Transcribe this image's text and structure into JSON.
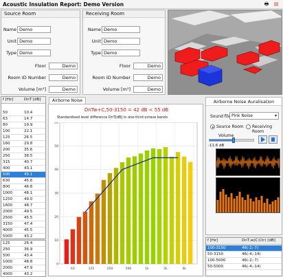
{
  "window": {
    "title": "Acoustic Insulation Report: Demo Version"
  },
  "source_room": {
    "title": "Source Room",
    "fields": [
      {
        "label": "Name",
        "value": "Demo"
      },
      {
        "label": "Unit",
        "value": "Demo"
      },
      {
        "label": "Type",
        "value": "Demo"
      },
      {
        "label": "Floor",
        "value": "Demo"
      },
      {
        "label": "Room ID Number",
        "value": "Demo"
      },
      {
        "label": "Volume [m³]",
        "value": "Demo"
      }
    ]
  },
  "receiving_room": {
    "title": "Receiving Room",
    "fields": [
      {
        "label": "Name",
        "value": "Demo"
      },
      {
        "label": "Unit",
        "value": "Demo"
      },
      {
        "label": "Type",
        "value": "Demo"
      },
      {
        "label": "Floor",
        "value": "Demo"
      },
      {
        "label": "Room ID Number",
        "value": "Demo"
      },
      {
        "label": "Volume [m³]",
        "value": "Demo"
      }
    ]
  },
  "freq_table": {
    "headers": [
      "f [Hz]",
      "DnT [dB]"
    ],
    "rows": [
      [
        "50",
        "10.4"
      ],
      [
        "63",
        "14.7"
      ],
      [
        "80",
        "19.9"
      ],
      [
        "100",
        "22.1"
      ],
      [
        "125",
        "26.5"
      ],
      [
        "160",
        "29.8"
      ],
      [
        "200",
        "35.6"
      ],
      [
        "250",
        "38.5"
      ],
      [
        "315",
        "40.7"
      ],
      [
        "400",
        "43.1"
      ],
      [
        "500",
        "45.1"
      ],
      [
        "630",
        "45.6"
      ],
      [
        "800",
        "46.8"
      ],
      [
        "1000",
        "48.1"
      ],
      [
        "1250",
        "49.0"
      ],
      [
        "1600",
        "48.7"
      ],
      [
        "2000",
        "49.5"
      ],
      [
        "2500",
        "45.5"
      ],
      [
        "3150",
        "47.4"
      ],
      [
        "4000",
        "45.5"
      ],
      [
        "5000",
        "43.2"
      ]
    ],
    "selected_index": 10
  },
  "octave_table": {
    "rows": [
      [
        "125",
        "26.4"
      ],
      [
        "250",
        "36.9"
      ],
      [
        "500",
        "43.4"
      ],
      [
        "1000",
        "48.8"
      ],
      [
        "2000",
        "47.9"
      ],
      [
        "4000",
        "43.2"
      ]
    ]
  },
  "chart_tab": {
    "label": "Airborne Noise"
  },
  "result_line": "DnTw+C,50-3150 = 42 dB < 55 dB",
  "chart_data": {
    "type": "bar",
    "title": "Standardised level difference DnT[dB] in one-third octave bands",
    "xlabel": "",
    "ylabel": "",
    "categories": [
      "50",
      "63",
      "80",
      "100",
      "125",
      "160",
      "200",
      "250",
      "315",
      "400",
      "500",
      "630",
      "800",
      "1000",
      "1250",
      "1600",
      "2000",
      "2500",
      "3150",
      "4000",
      "5000"
    ],
    "x_tick_labels": [
      "63",
      "125",
      "250",
      "500",
      "1k",
      "2k",
      "4k"
    ],
    "values": [
      10.4,
      14.7,
      19.9,
      22.1,
      26.5,
      29.8,
      35.6,
      38.5,
      40.7,
      43.1,
      45.1,
      45.6,
      46.8,
      48.1,
      49.0,
      48.7,
      49.5,
      45.5,
      47.4,
      45.5,
      43.2
    ],
    "reference_curve": {
      "categories": [
        "100",
        "125",
        "160",
        "200",
        "250",
        "315",
        "400",
        "500",
        "630",
        "800",
        "1000",
        "1250",
        "1600",
        "2000",
        "2500",
        "3150"
      ],
      "values": [
        22,
        25,
        28,
        31,
        34,
        37,
        40,
        41,
        42,
        43,
        44,
        45,
        45,
        45,
        45,
        45
      ]
    },
    "ylim": [
      0,
      60
    ],
    "grid": true,
    "legend": "none"
  },
  "aural": {
    "tab_label": "Airborne Noise Auralisation",
    "sound_file_label": "Sound file:",
    "sound_file_value": "Pink Noise",
    "radio_source": "Source Room",
    "radio_receiving": "Receiving Room",
    "volume_label": "Volume",
    "level_readout": "-11.6 dB",
    "volume_level": 0.55
  },
  "rating_table": {
    "headers": [
      "f [Hz]",
      "DnT,w(C;Ctr) [dB]"
    ],
    "rows": [
      [
        "100-3150",
        "46(-2;-7)"
      ],
      [
        "50-3150",
        "46(-4;-14)"
      ],
      [
        "100-5000",
        "46(-2;-7)"
      ],
      [
        "50-5000",
        "46(-4;-14)"
      ]
    ],
    "selected_index": 0
  },
  "colors": {
    "selection": "#2f7fd8",
    "bar_low": "#e0201a",
    "bar_mid": "#a8d200",
    "bar_high": "#f3cc10",
    "result_text": "#d01010",
    "reference_curve": "#1c2a8a"
  }
}
